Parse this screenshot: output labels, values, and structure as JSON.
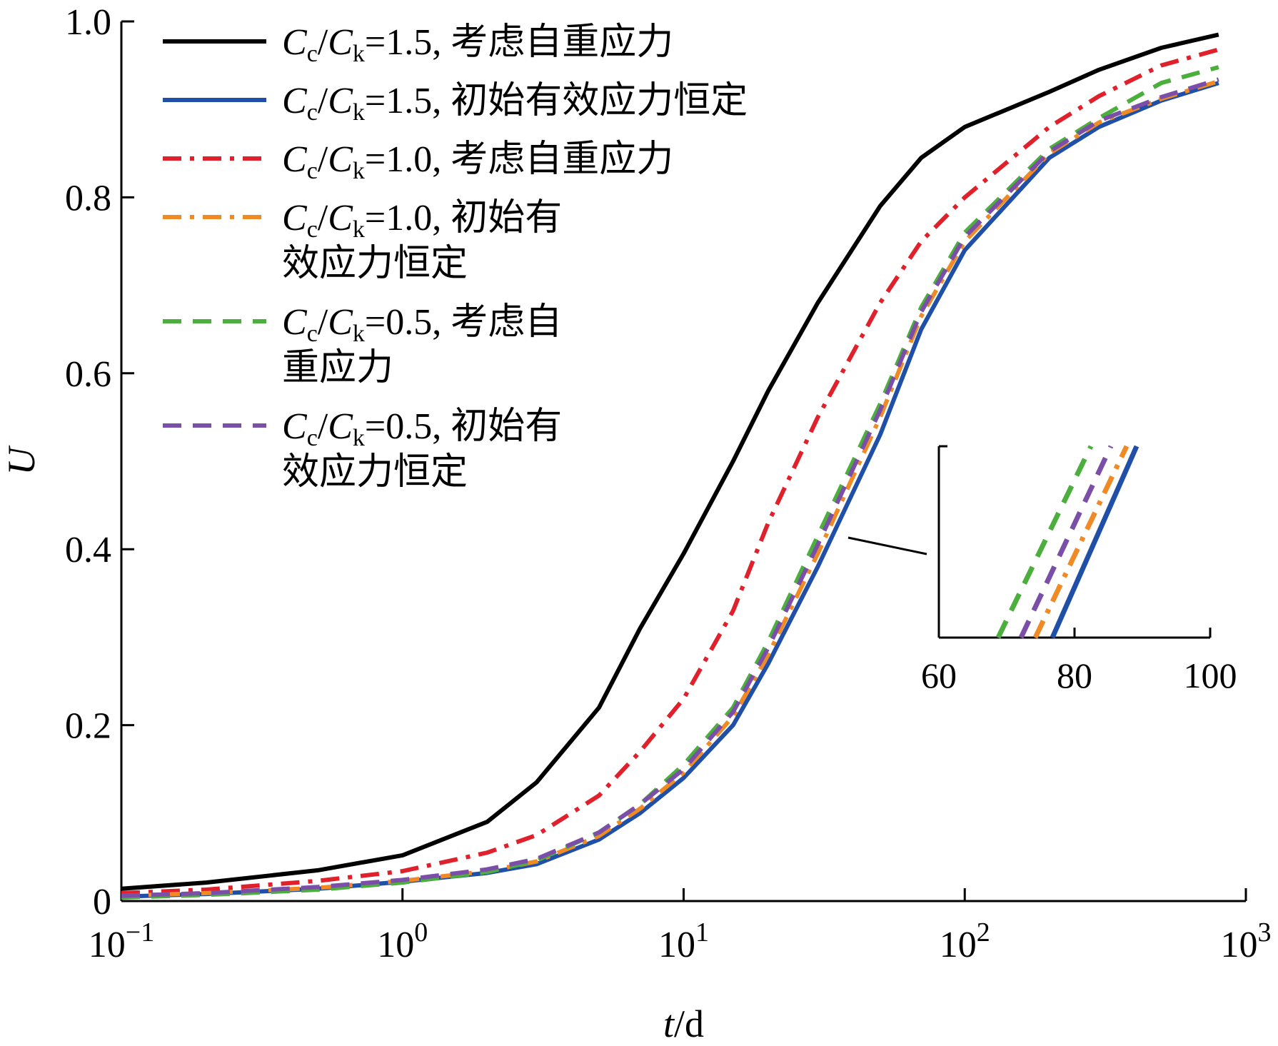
{
  "chart_data": {
    "type": "line",
    "xscale": "log",
    "xlim": [
      0.1,
      1000
    ],
    "ylim": [
      0,
      1.0
    ],
    "xlabel": {
      "italic": "t",
      "rest": "/d"
    },
    "ylabel": "U",
    "xticks": [
      {
        "value": 0.1,
        "base": "10",
        "exp": "−1"
      },
      {
        "value": 1,
        "base": "10",
        "exp": "0"
      },
      {
        "value": 10,
        "base": "10",
        "exp": "1"
      },
      {
        "value": 100,
        "base": "10",
        "exp": "2"
      },
      {
        "value": 1000,
        "base": "10",
        "exp": "3"
      }
    ],
    "yticks": [
      {
        "value": 0,
        "label": "0"
      },
      {
        "value": 0.2,
        "label": "0.2"
      },
      {
        "value": 0.4,
        "label": "0.4"
      },
      {
        "value": 0.6,
        "label": "0.6"
      },
      {
        "value": 0.8,
        "label": "0.8"
      },
      {
        "value": 1.0,
        "label": "1.0"
      }
    ],
    "grid": false,
    "legend_position": "top-left",
    "series": [
      {
        "ratio": "1.5",
        "condition_lines": [
          "考虑自重应力"
        ],
        "color": "#000000",
        "dash": "solid",
        "points": [
          [
            0.1,
            0.014
          ],
          [
            0.2,
            0.021
          ],
          [
            0.5,
            0.035
          ],
          [
            1,
            0.052
          ],
          [
            2,
            0.09
          ],
          [
            3,
            0.135
          ],
          [
            5,
            0.22
          ],
          [
            7,
            0.31
          ],
          [
            10,
            0.395
          ],
          [
            15,
            0.5
          ],
          [
            20,
            0.58
          ],
          [
            30,
            0.68
          ],
          [
            50,
            0.79
          ],
          [
            70,
            0.845
          ],
          [
            100,
            0.88
          ],
          [
            200,
            0.92
          ],
          [
            300,
            0.945
          ],
          [
            500,
            0.97
          ],
          [
            800,
            0.985
          ]
        ]
      },
      {
        "ratio": "1.5",
        "condition_lines": [
          "初始有效应力恒定"
        ],
        "color": "#1f4fa6",
        "dash": "solid",
        "points": [
          [
            0.1,
            0.005
          ],
          [
            0.2,
            0.008
          ],
          [
            0.5,
            0.014
          ],
          [
            1,
            0.022
          ],
          [
            2,
            0.032
          ],
          [
            3,
            0.042
          ],
          [
            5,
            0.07
          ],
          [
            7,
            0.1
          ],
          [
            10,
            0.14
          ],
          [
            15,
            0.2
          ],
          [
            20,
            0.27
          ],
          [
            30,
            0.38
          ],
          [
            50,
            0.53
          ],
          [
            70,
            0.65
          ],
          [
            100,
            0.74
          ],
          [
            200,
            0.845
          ],
          [
            300,
            0.88
          ],
          [
            500,
            0.91
          ],
          [
            800,
            0.93
          ]
        ]
      },
      {
        "ratio": "1.0",
        "condition_lines": [
          "考虑自重应力"
        ],
        "color": "#e0202b",
        "dash": "dashdot",
        "points": [
          [
            0.1,
            0.009
          ],
          [
            0.2,
            0.013
          ],
          [
            0.5,
            0.023
          ],
          [
            1,
            0.034
          ],
          [
            2,
            0.055
          ],
          [
            3,
            0.075
          ],
          [
            5,
            0.12
          ],
          [
            7,
            0.17
          ],
          [
            10,
            0.23
          ],
          [
            15,
            0.33
          ],
          [
            20,
            0.43
          ],
          [
            30,
            0.55
          ],
          [
            50,
            0.68
          ],
          [
            70,
            0.75
          ],
          [
            100,
            0.8
          ],
          [
            200,
            0.88
          ],
          [
            300,
            0.915
          ],
          [
            500,
            0.95
          ],
          [
            800,
            0.968
          ]
        ]
      },
      {
        "ratio": "1.0",
        "condition_lines": [
          "初始有",
          "效应力恒定"
        ],
        "color": "#f08a24",
        "dash": "dashdot",
        "points": [
          [
            0.1,
            0.006
          ],
          [
            0.2,
            0.009
          ],
          [
            0.5,
            0.015
          ],
          [
            1,
            0.023
          ],
          [
            2,
            0.034
          ],
          [
            3,
            0.045
          ],
          [
            5,
            0.074
          ],
          [
            7,
            0.105
          ],
          [
            10,
            0.146
          ],
          [
            15,
            0.21
          ],
          [
            20,
            0.28
          ],
          [
            30,
            0.395
          ],
          [
            50,
            0.55
          ],
          [
            70,
            0.665
          ],
          [
            100,
            0.75
          ],
          [
            200,
            0.85
          ],
          [
            300,
            0.885
          ],
          [
            500,
            0.912
          ],
          [
            800,
            0.932
          ]
        ]
      },
      {
        "ratio": "0.5",
        "condition_lines": [
          "考虑自",
          "重应力"
        ],
        "color": "#4cae3d",
        "dash": "dashed",
        "points": [
          [
            0.1,
            0.004
          ],
          [
            0.2,
            0.007
          ],
          [
            0.5,
            0.013
          ],
          [
            1,
            0.021
          ],
          [
            2,
            0.033
          ],
          [
            3,
            0.046
          ],
          [
            5,
            0.078
          ],
          [
            7,
            0.11
          ],
          [
            10,
            0.155
          ],
          [
            15,
            0.22
          ],
          [
            20,
            0.295
          ],
          [
            30,
            0.415
          ],
          [
            50,
            0.565
          ],
          [
            70,
            0.675
          ],
          [
            100,
            0.76
          ],
          [
            200,
            0.855
          ],
          [
            300,
            0.89
          ],
          [
            500,
            0.93
          ],
          [
            800,
            0.948
          ]
        ]
      },
      {
        "ratio": "0.5",
        "condition_lines": [
          "初始有",
          "效应力恒定"
        ],
        "color": "#7b4ea8",
        "dash": "dashed",
        "points": [
          [
            0.1,
            0.006
          ],
          [
            0.2,
            0.009
          ],
          [
            0.5,
            0.016
          ],
          [
            1,
            0.024
          ],
          [
            2,
            0.036
          ],
          [
            3,
            0.048
          ],
          [
            5,
            0.078
          ],
          [
            7,
            0.11
          ],
          [
            10,
            0.15
          ],
          [
            15,
            0.215
          ],
          [
            20,
            0.288
          ],
          [
            30,
            0.405
          ],
          [
            50,
            0.558
          ],
          [
            70,
            0.67
          ],
          [
            100,
            0.755
          ],
          [
            200,
            0.852
          ],
          [
            300,
            0.887
          ],
          [
            500,
            0.914
          ],
          [
            800,
            0.934
          ]
        ]
      }
    ],
    "inset": {
      "xticks": [
        {
          "value": 60,
          "label": "60"
        },
        {
          "value": 80,
          "label": "80"
        },
        {
          "value": 100,
          "label": "100"
        }
      ],
      "xlim": [
        60,
        100
      ]
    }
  }
}
